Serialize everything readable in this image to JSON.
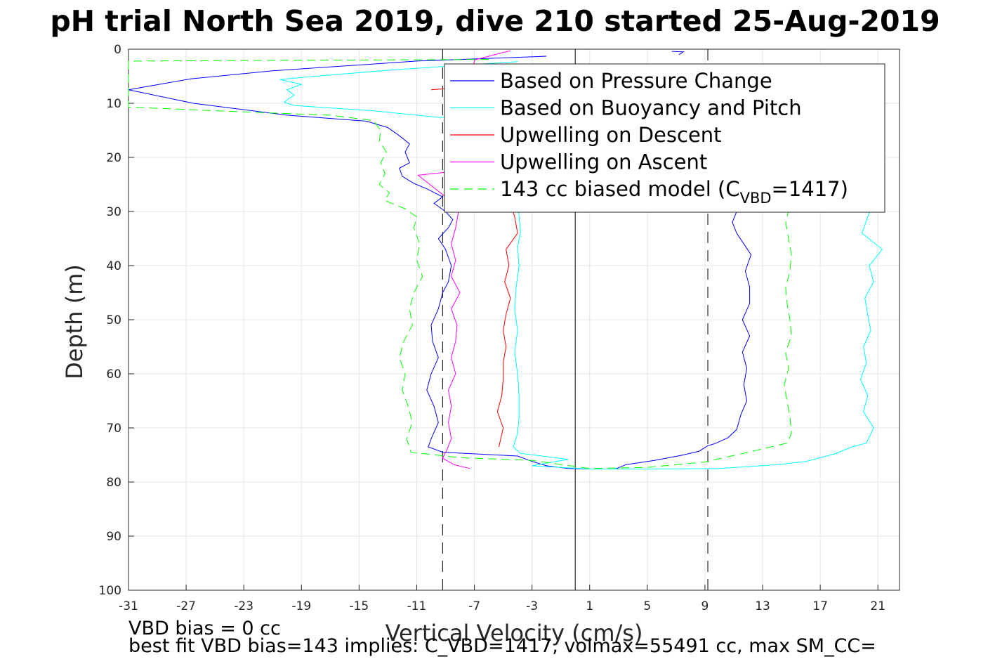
{
  "chart_data": {
    "type": "line",
    "title": "pH trial North Sea 2019, dive 210 started 25-Aug-2019",
    "xlabel": "Vertical Velocity (cm/s)",
    "ylabel": "Depth (m)",
    "xlim": [
      -31,
      22.5
    ],
    "ylim": [
      0,
      100
    ],
    "y_reversed": true,
    "grid": true,
    "legend_placement": "top-right",
    "x_ticks": [
      "-31",
      "-27",
      "-23",
      "-19",
      "-15",
      "-11",
      "-7",
      "-3",
      "1",
      "5",
      "9",
      "13",
      "17",
      "21"
    ],
    "y_ticks": [
      "0",
      "10",
      "20",
      "30",
      "40",
      "50",
      "60",
      "70",
      "80",
      "90",
      "100"
    ],
    "reference_lines": [
      {
        "x": -9.2,
        "style": "dashed",
        "color": "#262626"
      },
      {
        "x": 0,
        "style": "solid",
        "color": "#262626"
      },
      {
        "x": 9.2,
        "style": "dashed",
        "color": "#262626"
      }
    ],
    "legend": [
      {
        "text": "Based on Pressure Change",
        "color": "#0000ff",
        "dash": false
      },
      {
        "text": "Based on Buoyancy and Pitch",
        "color": "#00ffff",
        "dash": false
      },
      {
        "text": "Upwelling on Descent",
        "color": "#ff0000",
        "dash": false
      },
      {
        "text": "Upwelling on Ascent",
        "color": "#ff00ff",
        "dash": false
      },
      {
        "text": "143 cc biased model (C",
        "sub": "VBD",
        "suffix": "=1417)",
        "color": "#00ff00",
        "dash": true
      }
    ],
    "series": [
      {
        "name": "Based on Pressure Change",
        "color": "#0000ff",
        "dash": false,
        "points": [
          [
            -2,
            1.3
          ],
          [
            -11,
            2.2
          ],
          [
            -21,
            4
          ],
          [
            -26.7,
            5.5
          ],
          [
            -31,
            7.5
          ],
          [
            -26.5,
            10
          ],
          [
            -20,
            12.2
          ],
          [
            -14.5,
            13.3
          ],
          [
            -13,
            14.5
          ],
          [
            -12.2,
            16
          ],
          [
            -11.5,
            17.5
          ],
          [
            -11.8,
            19
          ],
          [
            -11.5,
            21
          ],
          [
            -12.2,
            22
          ],
          [
            -12,
            23.5
          ],
          [
            -11.2,
            24.8
          ],
          [
            -10.3,
            25.8
          ],
          [
            -9.2,
            27.3
          ],
          [
            -9.8,
            28.5
          ],
          [
            -9,
            30
          ],
          [
            -8.5,
            31.5
          ],
          [
            -8.8,
            33
          ],
          [
            -9.5,
            35
          ],
          [
            -9,
            37
          ],
          [
            -8.6,
            40
          ],
          [
            -8.8,
            43
          ],
          [
            -9.2,
            45
          ],
          [
            -9.5,
            48
          ],
          [
            -10,
            51
          ],
          [
            -9.9,
            54
          ],
          [
            -9.5,
            57
          ],
          [
            -10,
            60
          ],
          [
            -10.3,
            63
          ],
          [
            -9.8,
            66
          ],
          [
            -9.5,
            69
          ],
          [
            -10,
            72
          ],
          [
            -10.2,
            73.5
          ],
          [
            -9.2,
            74.5
          ],
          [
            -4,
            75.2
          ],
          [
            -3,
            76.2
          ],
          [
            -2,
            77
          ],
          [
            -0.5,
            77.5
          ],
          [
            1,
            77.6
          ],
          [
            2.8,
            77.6
          ],
          [
            3.5,
            76.8
          ],
          [
            5.5,
            76
          ],
          [
            7.5,
            75
          ],
          [
            8.6,
            74.3
          ],
          [
            9.2,
            73.3
          ],
          [
            9.7,
            72.9
          ],
          [
            10.6,
            71.8
          ],
          [
            11.2,
            70.3
          ],
          [
            11.5,
            67.5
          ],
          [
            11.9,
            65
          ],
          [
            11.7,
            62
          ],
          [
            11.9,
            59
          ],
          [
            11.6,
            56
          ],
          [
            12.1,
            53
          ],
          [
            11.6,
            50
          ],
          [
            12.1,
            47
          ],
          [
            12.1,
            44
          ],
          [
            11.8,
            41
          ],
          [
            12.2,
            38
          ],
          [
            11.7,
            36
          ],
          [
            11.2,
            34
          ],
          [
            10.9,
            32
          ],
          [
            11.2,
            30
          ],
          [
            11.1,
            27.5
          ],
          [
            10.7,
            25
          ]
        ]
      },
      {
        "name": "Based on Buoyancy and Pitch",
        "color": "#00ffff",
        "dash": false,
        "points": [
          [
            -4,
            2.3
          ],
          [
            -12.5,
            3.8
          ],
          [
            -17.6,
            4.9
          ],
          [
            -20.5,
            5.6
          ],
          [
            -19,
            6.5
          ],
          [
            -20,
            7.5
          ],
          [
            -19.5,
            8.5
          ],
          [
            -20.2,
            9.8
          ],
          [
            -19.5,
            10.4
          ],
          [
            -14,
            11.4
          ],
          [
            -9.5,
            12.6
          ],
          [
            -4.5,
            13
          ],
          [
            -3.8,
            33.8
          ],
          [
            -4,
            36.5
          ],
          [
            -3.9,
            40
          ],
          [
            -4.1,
            44
          ],
          [
            -4.2,
            48
          ],
          [
            -4,
            52
          ],
          [
            -4.2,
            56
          ],
          [
            -4,
            60
          ],
          [
            -3.9,
            64
          ],
          [
            -3.9,
            68
          ],
          [
            -4,
            71
          ],
          [
            -4.3,
            73.5
          ],
          [
            -3.8,
            74.7
          ],
          [
            -0.5,
            75.8
          ],
          [
            -3,
            77
          ],
          [
            1,
            77.6
          ],
          [
            5,
            77.6
          ],
          [
            10,
            77.5
          ],
          [
            14,
            76.8
          ],
          [
            16,
            76.2
          ],
          [
            18,
            74.8
          ],
          [
            19.2,
            73.5
          ],
          [
            20.2,
            72.8
          ],
          [
            20.7,
            70
          ],
          [
            20,
            67
          ],
          [
            20.3,
            64
          ],
          [
            19.8,
            61
          ],
          [
            20.2,
            58
          ],
          [
            20,
            55
          ],
          [
            20.5,
            52
          ],
          [
            20.3,
            49
          ],
          [
            20.1,
            46
          ],
          [
            20.7,
            43
          ],
          [
            20.4,
            40
          ],
          [
            21.3,
            37
          ],
          [
            19.9,
            34
          ],
          [
            20.3,
            31
          ],
          [
            21.5,
            23
          ]
        ]
      },
      {
        "name": "Upwelling on Descent",
        "color": "#ff0000",
        "dash": false,
        "points": [
          [
            -10,
            7.5
          ],
          [
            -6,
            6.7
          ],
          [
            -8,
            8.5
          ],
          [
            -7,
            8.2
          ],
          [
            -4.2,
            31
          ],
          [
            -4,
            34
          ],
          [
            -4.8,
            37
          ],
          [
            -4.6,
            40
          ],
          [
            -4.9,
            43
          ],
          [
            -4.5,
            46
          ],
          [
            -4.8,
            49
          ],
          [
            -5,
            52
          ],
          [
            -4.8,
            55
          ],
          [
            -5,
            58
          ],
          [
            -5,
            61
          ],
          [
            -5.1,
            64
          ],
          [
            -5.4,
            67
          ],
          [
            -5,
            70
          ],
          [
            -5.3,
            73.5
          ]
        ]
      },
      {
        "name": "Upwelling on Ascent",
        "color": "#ff00ff",
        "dash": false,
        "points": [
          [
            -7.3,
            77.5
          ],
          [
            -8.4,
            76.8
          ],
          [
            -9.2,
            75.6
          ],
          [
            -8.9,
            74
          ],
          [
            -8.6,
            72
          ],
          [
            -8.8,
            69
          ],
          [
            -8.6,
            66
          ],
          [
            -8.8,
            63
          ],
          [
            -8.3,
            60
          ],
          [
            -8.6,
            57
          ],
          [
            -8.3,
            54
          ],
          [
            -8.2,
            51
          ],
          [
            -8.6,
            48
          ],
          [
            -8.0,
            45
          ],
          [
            -8.6,
            42
          ],
          [
            -8.3,
            39
          ],
          [
            -8.6,
            36
          ],
          [
            -8.3,
            33
          ],
          [
            -8.1,
            30
          ],
          [
            -8.8,
            27.7
          ],
          [
            -10.9,
            23.3
          ],
          [
            -8.5,
            22.6
          ],
          [
            -8.0,
            22.2
          ],
          [
            -7,
            2
          ],
          [
            -5,
            0.6
          ],
          [
            -4.5,
            0.3
          ]
        ]
      },
      {
        "name": "143 cc biased model (C_VBD=1417)",
        "color": "#00ff00",
        "dash": true,
        "points": [
          [
            -6,
            1.9
          ],
          [
            -31,
            2.2
          ],
          [
            -31,
            10.7
          ],
          [
            -23,
            11.6
          ],
          [
            -17,
            12.2
          ],
          [
            -14,
            13.2
          ],
          [
            -13.5,
            15
          ],
          [
            -13.6,
            17
          ],
          [
            -13.1,
            19
          ],
          [
            -13.5,
            21
          ],
          [
            -13.2,
            23
          ],
          [
            -13.6,
            25
          ],
          [
            -12.9,
            26.5
          ],
          [
            -13.2,
            28
          ],
          [
            -11.8,
            29.5
          ],
          [
            -11,
            31
          ],
          [
            -11.2,
            33
          ],
          [
            -10.8,
            36
          ],
          [
            -11,
            39
          ],
          [
            -10.6,
            42
          ],
          [
            -11.2,
            45
          ],
          [
            -11.5,
            48
          ],
          [
            -11.3,
            51
          ],
          [
            -11.9,
            54
          ],
          [
            -12.2,
            57
          ],
          [
            -11.8,
            60
          ],
          [
            -12,
            63
          ],
          [
            -11.6,
            66
          ],
          [
            -11.3,
            69
          ],
          [
            -11.7,
            72
          ],
          [
            -11.4,
            74.5
          ],
          [
            -8,
            75.5
          ],
          [
            -3,
            76
          ],
          [
            1,
            77.5
          ],
          [
            5,
            77.3
          ],
          [
            9,
            76.3
          ],
          [
            12,
            74.5
          ],
          [
            14.7,
            72.8
          ],
          [
            15,
            71
          ],
          [
            14.9,
            68
          ],
          [
            14.7,
            65
          ],
          [
            14.5,
            62
          ],
          [
            14.8,
            59
          ],
          [
            14.6,
            56
          ],
          [
            15,
            53
          ],
          [
            14.9,
            50
          ],
          [
            14.7,
            47
          ],
          [
            14.6,
            44
          ],
          [
            14.9,
            41
          ],
          [
            15,
            38
          ],
          [
            14.8,
            35
          ],
          [
            14.6,
            32
          ],
          [
            14.9,
            29
          ],
          [
            14.5,
            27
          ]
        ]
      },
      {
        "name": "ascent-top-segments",
        "color": "#0000ff",
        "dash": false,
        "points": [
          [
            6.7,
            0.4
          ],
          [
            7.5,
            0.5
          ],
          [
            7.2,
            1.0
          ]
        ]
      }
    ],
    "annotations": {
      "vbd_bias": "VBD bias = 0 cc",
      "best_fit": "best fit VBD bias=143 implies: C_VBD=1417, volmax=55491 cc, max SM_CC=",
      "top_right_extra": "0"
    }
  }
}
